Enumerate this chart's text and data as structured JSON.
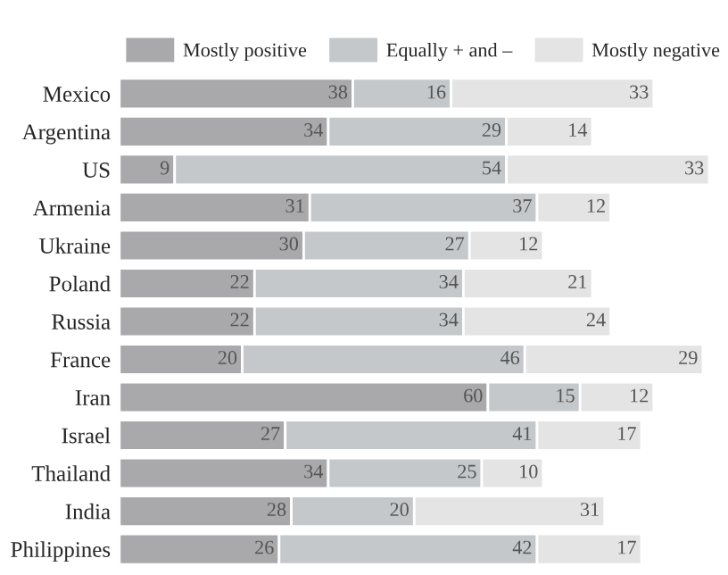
{
  "chart_data": {
    "type": "bar",
    "orientation": "horizontal",
    "stacked": true,
    "data_labels": true,
    "legend": "top",
    "grid": false,
    "tick_labels": "y",
    "categories": [
      "Mexico",
      "Argentina",
      "US",
      "Armenia",
      "Ukraine",
      "Poland",
      "Russia",
      "France",
      "Iran",
      "Israel",
      "Thailand",
      "India",
      "Philippines"
    ],
    "series": [
      {
        "name": "Mostly positive",
        "color": "#a9a8aa",
        "values": [
          38,
          34,
          9,
          31,
          30,
          22,
          22,
          20,
          60,
          27,
          34,
          28,
          26
        ]
      },
      {
        "name": "Equally + and –",
        "color": "#c5c8cb",
        "values": [
          16,
          29,
          54,
          37,
          27,
          34,
          34,
          46,
          15,
          41,
          25,
          20,
          42
        ]
      },
      {
        "name": "Mostly negative",
        "color": "#e4e4e4",
        "values": [
          33,
          14,
          33,
          12,
          12,
          21,
          24,
          29,
          12,
          17,
          10,
          31,
          17
        ]
      }
    ]
  }
}
